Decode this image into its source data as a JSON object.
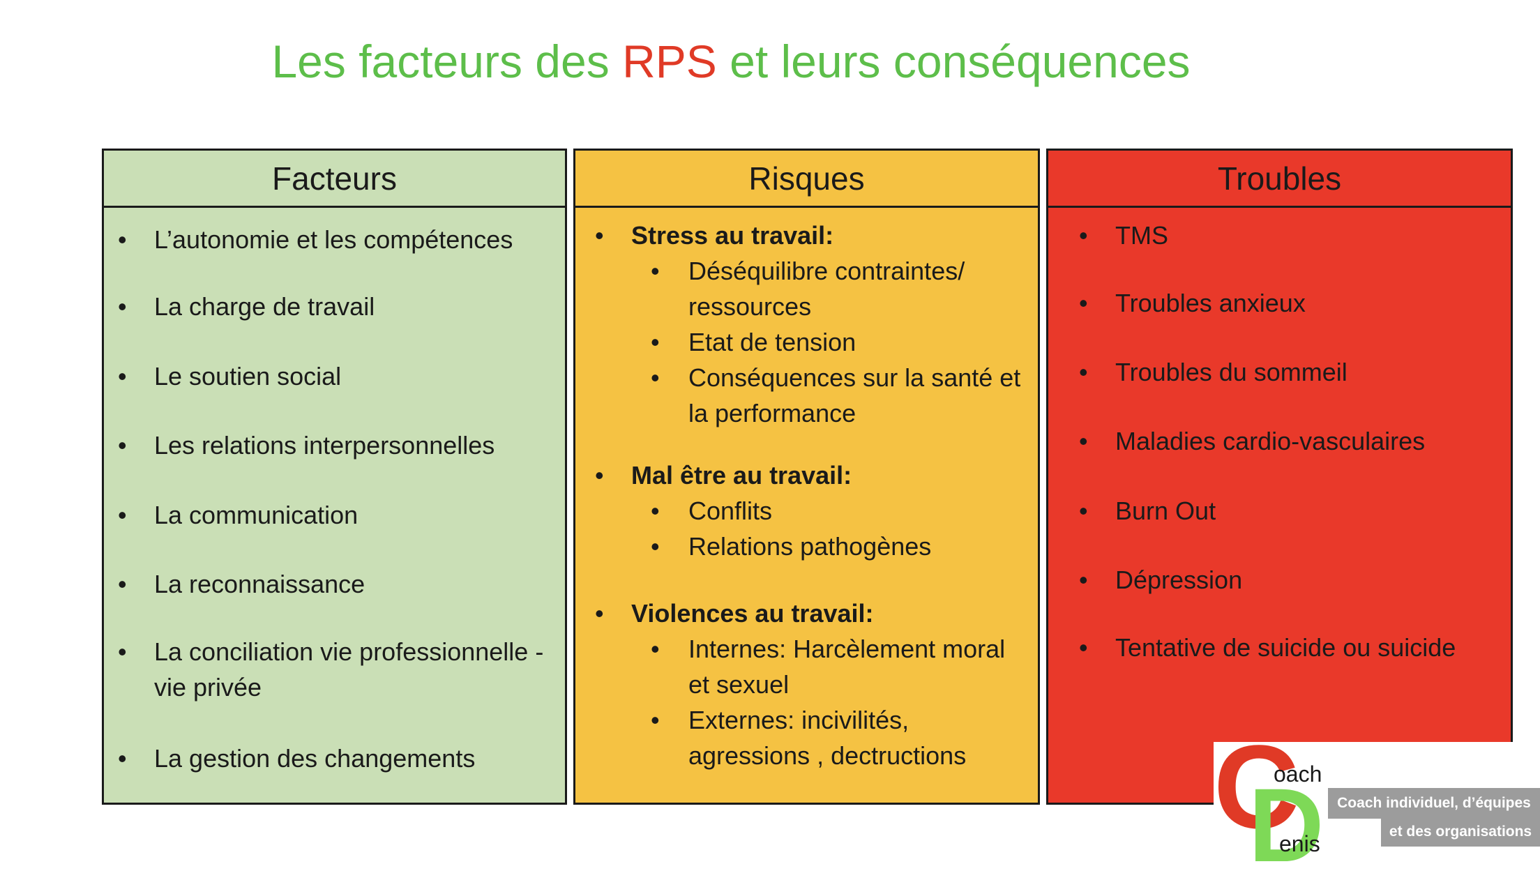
{
  "title": {
    "part1": "Les facteurs des ",
    "accent": "RPS",
    "part2": " et leurs conséquences"
  },
  "colors": {
    "title_green": "#5dbe4a",
    "accent_red": "#e03a26",
    "facteurs_bg": "#cadfb6",
    "risques_bg": "#f5c243",
    "troubles_bg": "#e9392a"
  },
  "facteurs": {
    "heading": "Facteurs",
    "items": [
      "L’autonomie et les compétences",
      "La charge de travail",
      "Le soutien social",
      "Les relations interpersonnelles",
      "La communication",
      "La reconnaissance",
      "La conciliation vie professionnelle - vie privée",
      "La gestion des changements"
    ]
  },
  "risques": {
    "heading": "Risques",
    "groups": [
      {
        "label": "Stress au travail:",
        "items": [
          "Déséquilibre contraintes/ ressources",
          "Etat de tension",
          "Conséquences sur la santé et la performance"
        ]
      },
      {
        "label": "Mal être au travail:",
        "items": [
          "Conflits",
          "Relations pathogènes"
        ]
      },
      {
        "label": "Violences au travail:",
        "items": [
          "Internes: Harcèlement moral et sexuel",
          "Externes: incivilités, agressions , dectructions"
        ]
      }
    ]
  },
  "troubles": {
    "heading": "Troubles",
    "items": [
      "TMS",
      "Troubles anxieux",
      "Troubles du sommeil",
      "Maladies cardio-vasculaires",
      "Burn Out",
      "Dépression",
      "Tentative de suicide ou suicide"
    ]
  },
  "logo": {
    "c_letter": "C",
    "oach": "oach",
    "d_letter": "D",
    "enis": "enis",
    "tagline1": "Coach individuel, d’équipes",
    "tagline2": "et des organisations"
  }
}
